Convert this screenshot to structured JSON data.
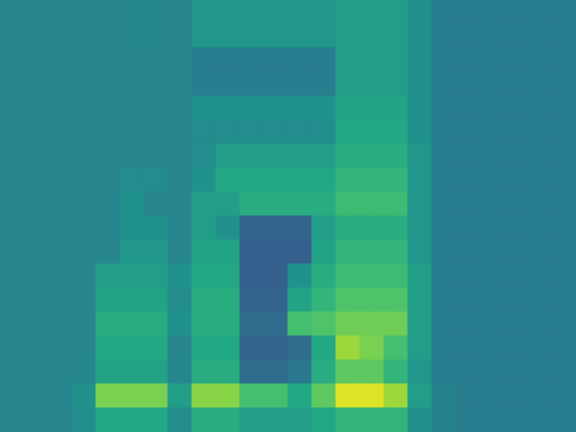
{
  "chart_data": {
    "type": "heatmap",
    "tick_labels": false,
    "zlim": [
      0,
      100
    ],
    "cells": [
      [
        45,
        45,
        45,
        45,
        45,
        46,
        46,
        45,
        52,
        52,
        52,
        52,
        52,
        52,
        55,
        55,
        55,
        50,
        42,
        42,
        42,
        42,
        42,
        42
      ],
      [
        45,
        45,
        45,
        45,
        45,
        46,
        46,
        45,
        52,
        52,
        52,
        52,
        52,
        52,
        55,
        55,
        55,
        50,
        42,
        42,
        42,
        42,
        42,
        42
      ],
      [
        45,
        45,
        45,
        45,
        45,
        45,
        45,
        45,
        42,
        42,
        42,
        42,
        42,
        42,
        55,
        55,
        55,
        50,
        42,
        42,
        42,
        42,
        42,
        42
      ],
      [
        45,
        45,
        45,
        45,
        45,
        45,
        45,
        45,
        42,
        42,
        42,
        42,
        42,
        42,
        55,
        55,
        55,
        50,
        42,
        42,
        42,
        42,
        42,
        42
      ],
      [
        45,
        45,
        45,
        45,
        45,
        45,
        45,
        45,
        50,
        50,
        50,
        50,
        50,
        50,
        58,
        58,
        58,
        50,
        42,
        42,
        42,
        42,
        42,
        42
      ],
      [
        45,
        45,
        45,
        45,
        45,
        45,
        45,
        45,
        48,
        48,
        48,
        48,
        48,
        48,
        60,
        60,
        60,
        50,
        42,
        42,
        42,
        42,
        42,
        42
      ],
      [
        45,
        45,
        45,
        45,
        45,
        45,
        45,
        45,
        48,
        55,
        55,
        55,
        55,
        55,
        62,
        62,
        62,
        52,
        42,
        42,
        42,
        42,
        42,
        42
      ],
      [
        45,
        45,
        45,
        45,
        45,
        48,
        48,
        45,
        50,
        60,
        60,
        60,
        60,
        60,
        65,
        65,
        65,
        52,
        42,
        42,
        42,
        42,
        42,
        42
      ],
      [
        45,
        45,
        45,
        45,
        45,
        50,
        45,
        45,
        55,
        55,
        62,
        62,
        62,
        62,
        68,
        68,
        68,
        52,
        42,
        42,
        42,
        42,
        42,
        42
      ],
      [
        45,
        45,
        45,
        45,
        45,
        50,
        50,
        45,
        55,
        50,
        32,
        32,
        32,
        55,
        62,
        62,
        62,
        52,
        42,
        42,
        42,
        42,
        42,
        42
      ],
      [
        45,
        45,
        45,
        45,
        45,
        52,
        52,
        45,
        58,
        58,
        30,
        30,
        30,
        58,
        65,
        65,
        65,
        52,
        42,
        42,
        42,
        42,
        42,
        42
      ],
      [
        45,
        45,
        45,
        45,
        55,
        55,
        55,
        50,
        60,
        60,
        30,
        30,
        50,
        62,
        68,
        68,
        68,
        55,
        42,
        42,
        42,
        42,
        42,
        42
      ],
      [
        45,
        45,
        45,
        45,
        58,
        58,
        58,
        48,
        62,
        62,
        32,
        32,
        58,
        65,
        72,
        72,
        72,
        55,
        42,
        42,
        42,
        42,
        42,
        42
      ],
      [
        45,
        45,
        45,
        45,
        62,
        62,
        62,
        50,
        62,
        62,
        35,
        35,
        70,
        72,
        78,
        78,
        78,
        55,
        42,
        42,
        42,
        42,
        42,
        42
      ],
      [
        45,
        45,
        45,
        45,
        60,
        60,
        60,
        45,
        60,
        60,
        32,
        32,
        35,
        60,
        85,
        80,
        70,
        55,
        42,
        42,
        42,
        42,
        42,
        42
      ],
      [
        45,
        45,
        45,
        46,
        58,
        58,
        58,
        46,
        62,
        62,
        35,
        35,
        40,
        62,
        75,
        75,
        65,
        52,
        42,
        42,
        42,
        42,
        42,
        42
      ],
      [
        45,
        45,
        45,
        50,
        80,
        80,
        80,
        55,
        82,
        82,
        70,
        70,
        60,
        75,
        95,
        95,
        85,
        55,
        44,
        42,
        42,
        42,
        42,
        42
      ],
      [
        45,
        45,
        45,
        48,
        60,
        60,
        60,
        48,
        62,
        62,
        55,
        55,
        55,
        60,
        65,
        65,
        65,
        50,
        44,
        42,
        42,
        42,
        42,
        42
      ]
    ]
  }
}
